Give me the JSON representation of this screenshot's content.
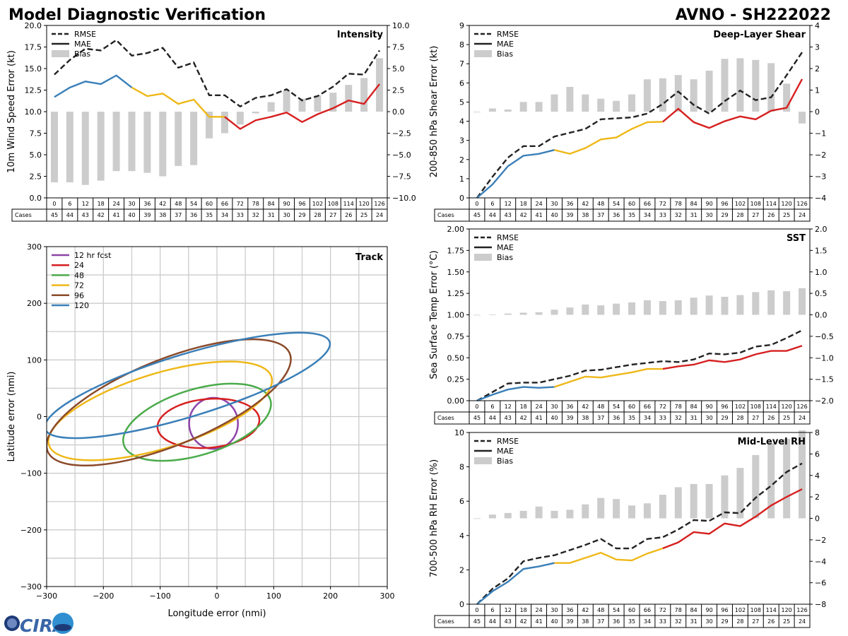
{
  "header": {
    "title": "Model Diagnostic Verification",
    "storm_id": "AVNO - SH222022"
  },
  "logo": {
    "text": "CIRA"
  },
  "colors": {
    "seg1": "#3a7fb8",
    "seg2": "#efb818",
    "seg3": "#d62020",
    "rmse": "#222222",
    "bias": "#cccccc",
    "grid": "#cccccc"
  },
  "chart_data": [
    {
      "id": "intensity",
      "type": "line+bar",
      "title": "Intensity",
      "ylabel": "10m Wind Speed Error (kt)",
      "ylim": [
        0,
        20
      ],
      "yticks": [
        "0.0",
        "2.5",
        "5.0",
        "7.5",
        "10.0",
        "12.5",
        "15.0",
        "17.5",
        "20.0"
      ],
      "y2lim": [
        -10,
        10
      ],
      "y2ticks": [
        "−10.0",
        "−7.5",
        "−5.0",
        "−2.5",
        "0.0",
        "2.5",
        "5.0",
        "7.5",
        "10.0"
      ],
      "legend": [
        "RMSE",
        "MAE",
        "Bias"
      ],
      "hours": [
        "0",
        "6",
        "12",
        "18",
        "24",
        "30",
        "36",
        "42",
        "48",
        "54",
        "60",
        "66",
        "72",
        "78",
        "84",
        "90",
        "96",
        "102",
        "108",
        "114",
        "120",
        "126"
      ],
      "cases": [
        "45",
        "44",
        "43",
        "42",
        "41",
        "40",
        "39",
        "38",
        "37",
        "36",
        "35",
        "34",
        "33",
        "32",
        "31",
        "30",
        "29",
        "28",
        "27",
        "26",
        "25",
        "24"
      ],
      "cases_label": "Cases",
      "rmse": [
        14.3,
        16.0,
        17.3,
        17.1,
        18.3,
        16.5,
        16.8,
        17.4,
        15.1,
        15.7,
        11.9,
        11.9,
        10.6,
        11.6,
        11.9,
        12.6,
        11.3,
        11.8,
        12.9,
        14.4,
        14.3,
        17.1
      ],
      "mae": [
        11.7,
        12.8,
        13.5,
        13.2,
        14.2,
        12.8,
        11.8,
        12.1,
        10.9,
        11.4,
        9.4,
        9.4,
        8.0,
        9.0,
        9.4,
        9.9,
        8.8,
        9.7,
        10.4,
        11.3,
        10.9,
        13.2
      ],
      "bias": [
        -8.2,
        -8.2,
        -8.5,
        -8.0,
        -6.9,
        -6.9,
        -7.1,
        -7.5,
        -6.3,
        -6.2,
        -3.1,
        -2.5,
        -1.5,
        -0.2,
        1.1,
        2.5,
        1.5,
        1.9,
        2.2,
        3.1,
        3.9,
        6.2
      ]
    },
    {
      "id": "shear",
      "type": "line+bar",
      "title": "Deep-Layer Shear",
      "ylabel": "200-850 hPa Shear Error (kt)",
      "ylim": [
        0,
        9
      ],
      "yticks": [
        "0",
        "1",
        "2",
        "3",
        "4",
        "5",
        "6",
        "7",
        "8",
        "9"
      ],
      "y2lim": [
        -4,
        4
      ],
      "y2ticks": [
        "−4",
        "−3",
        "−2",
        "−1",
        "0",
        "1",
        "2",
        "3",
        "4"
      ],
      "legend": [
        "RMSE",
        "MAE",
        "Bias"
      ],
      "hours": [
        "0",
        "6",
        "12",
        "18",
        "24",
        "30",
        "36",
        "42",
        "48",
        "54",
        "60",
        "66",
        "72",
        "78",
        "84",
        "90",
        "96",
        "102",
        "108",
        "114",
        "120",
        "126"
      ],
      "cases": [
        "45",
        "44",
        "43",
        "42",
        "41",
        "40",
        "39",
        "38",
        "37",
        "36",
        "35",
        "34",
        "33",
        "32",
        "31",
        "30",
        "29",
        "28",
        "27",
        "26",
        "25",
        "24"
      ],
      "cases_label": "Cases",
      "rmse": [
        0.0,
        1.1,
        2.1,
        2.7,
        2.7,
        3.2,
        3.4,
        3.6,
        4.1,
        4.15,
        4.2,
        4.4,
        4.9,
        5.55,
        4.85,
        4.4,
        5.05,
        5.6,
        5.1,
        5.25,
        6.4,
        7.6
      ],
      "mae": [
        0.0,
        0.7,
        1.65,
        2.2,
        2.3,
        2.5,
        2.3,
        2.6,
        3.05,
        3.15,
        3.6,
        3.95,
        3.97,
        4.65,
        3.95,
        3.65,
        4.0,
        4.25,
        4.1,
        4.55,
        4.7,
        6.2
      ],
      "bias": [
        0.0,
        0.15,
        0.1,
        0.45,
        0.45,
        0.8,
        1.15,
        0.8,
        0.6,
        0.5,
        0.8,
        1.5,
        1.55,
        1.7,
        1.5,
        1.9,
        2.45,
        2.48,
        2.4,
        2.25,
        1.3,
        -0.55
      ]
    },
    {
      "id": "sst",
      "type": "line+bar",
      "title": "SST",
      "ylabel": "Sea Surface Temp Error (°C)",
      "ylim": [
        0,
        2
      ],
      "yticks": [
        "0.00",
        "0.25",
        "0.50",
        "0.75",
        "1.00",
        "1.25",
        "1.50",
        "1.75",
        "2.00"
      ],
      "y2lim": [
        -2,
        2
      ],
      "y2ticks": [
        "−2.0",
        "−1.5",
        "−1.0",
        "−0.5",
        "0.0",
        "0.5",
        "1.0",
        "1.5",
        "2.0"
      ],
      "legend": [
        "RMSE",
        "MAE",
        "Bias"
      ],
      "hours": [
        "0",
        "6",
        "12",
        "18",
        "24",
        "30",
        "36",
        "42",
        "48",
        "54",
        "60",
        "66",
        "72",
        "78",
        "84",
        "90",
        "96",
        "102",
        "108",
        "114",
        "120",
        "126"
      ],
      "cases": [
        "45",
        "44",
        "43",
        "42",
        "41",
        "40",
        "39",
        "38",
        "37",
        "36",
        "35",
        "34",
        "33",
        "32",
        "31",
        "30",
        "29",
        "28",
        "27",
        "26",
        "25",
        "24"
      ],
      "cases_label": "Cases",
      "rmse": [
        0.0,
        0.1,
        0.2,
        0.21,
        0.21,
        0.25,
        0.29,
        0.35,
        0.36,
        0.39,
        0.42,
        0.44,
        0.46,
        0.45,
        0.48,
        0.55,
        0.54,
        0.56,
        0.63,
        0.65,
        0.73,
        0.82
      ],
      "mae": [
        0.0,
        0.07,
        0.13,
        0.16,
        0.15,
        0.16,
        0.22,
        0.28,
        0.27,
        0.3,
        0.33,
        0.37,
        0.37,
        0.4,
        0.42,
        0.47,
        0.45,
        0.48,
        0.54,
        0.58,
        0.58,
        0.64
      ],
      "bias": [
        0.0,
        0.01,
        0.03,
        0.05,
        0.06,
        0.12,
        0.17,
        0.24,
        0.22,
        0.26,
        0.29,
        0.34,
        0.32,
        0.34,
        0.4,
        0.45,
        0.42,
        0.46,
        0.53,
        0.57,
        0.55,
        0.62
      ]
    },
    {
      "id": "rh",
      "type": "line+bar",
      "title": "Mid-Level RH",
      "ylabel": "700-500 hPa RH Error (%)",
      "ylim": [
        0,
        10
      ],
      "yticks": [
        "0",
        "2",
        "4",
        "6",
        "8",
        "10"
      ],
      "y2lim": [
        -8,
        8
      ],
      "y2ticks": [
        "−8",
        "−6",
        "−4",
        "−2",
        "0",
        "2",
        "4",
        "6",
        "8"
      ],
      "legend": [
        "RMSE",
        "MAE",
        "Bias"
      ],
      "hours": [
        "0",
        "6",
        "12",
        "18",
        "24",
        "30",
        "36",
        "42",
        "48",
        "54",
        "60",
        "66",
        "72",
        "78",
        "84",
        "90",
        "96",
        "102",
        "108",
        "114",
        "120",
        "126"
      ],
      "cases": [
        "45",
        "44",
        "43",
        "42",
        "41",
        "40",
        "39",
        "38",
        "37",
        "36",
        "35",
        "34",
        "33",
        "32",
        "31",
        "30",
        "29",
        "28",
        "27",
        "26",
        "25",
        "24"
      ],
      "cases_label": "Cases",
      "rmse": [
        0.0,
        0.9,
        1.5,
        2.5,
        2.7,
        2.85,
        3.15,
        3.45,
        3.8,
        3.25,
        3.25,
        3.8,
        3.9,
        4.35,
        4.9,
        4.85,
        5.35,
        5.3,
        6.2,
        6.9,
        7.7,
        8.2
      ],
      "mae": [
        0.0,
        0.75,
        1.3,
        2.05,
        2.2,
        2.4,
        2.4,
        2.7,
        3.0,
        2.6,
        2.55,
        2.95,
        3.25,
        3.6,
        4.2,
        4.1,
        4.7,
        4.55,
        5.1,
        5.75,
        6.25,
        6.7
      ],
      "bias": [
        0.0,
        0.35,
        0.5,
        0.7,
        1.1,
        0.7,
        0.8,
        1.3,
        1.9,
        1.8,
        1.2,
        1.4,
        2.2,
        2.9,
        3.2,
        3.2,
        4.0,
        4.7,
        5.9,
        7.0,
        7.4,
        8.2
      ]
    },
    {
      "id": "track",
      "type": "ellipse",
      "title": "Track",
      "xlabel": "Longitude error (nmi)",
      "ylabel": "Latitude error (nmi)",
      "xlim": [
        -300,
        300
      ],
      "ylim": [
        -300,
        300
      ],
      "xticks": [
        "−300",
        "−200",
        "−100",
        "0",
        "100",
        "200",
        "300"
      ],
      "yticks": [
        "−300",
        "−200",
        "−100",
        "0",
        "100",
        "200",
        "300"
      ],
      "legend": [
        "12 hr fcst",
        "24",
        "48",
        "72",
        "96",
        "120"
      ],
      "ellipses": [
        {
          "label": "12 hr fcst",
          "color": "#8e44a8",
          "cx": -6,
          "cy": -12,
          "rx": 43,
          "ry": 45,
          "angle": 0
        },
        {
          "label": "24",
          "color": "#d62020",
          "cx": -15,
          "cy": -12,
          "rx": 90,
          "ry": 43,
          "angle": -5
        },
        {
          "label": "48",
          "color": "#4aab4a",
          "cx": -35,
          "cy": -10,
          "rx": 135,
          "ry": 58,
          "angle": -17
        },
        {
          "label": "72",
          "color": "#efb818",
          "cx": -100,
          "cy": 10,
          "rx": 205,
          "ry": 66,
          "angle": -17
        },
        {
          "label": "96",
          "color": "#8b4a2a",
          "cx": -85,
          "cy": 25,
          "rx": 230,
          "ry": 76,
          "angle": -22
        },
        {
          "label": "120",
          "color": "#3a7fb8",
          "cx": -52,
          "cy": 55,
          "rx": 262,
          "ry": 55,
          "angle": -17
        }
      ]
    }
  ]
}
